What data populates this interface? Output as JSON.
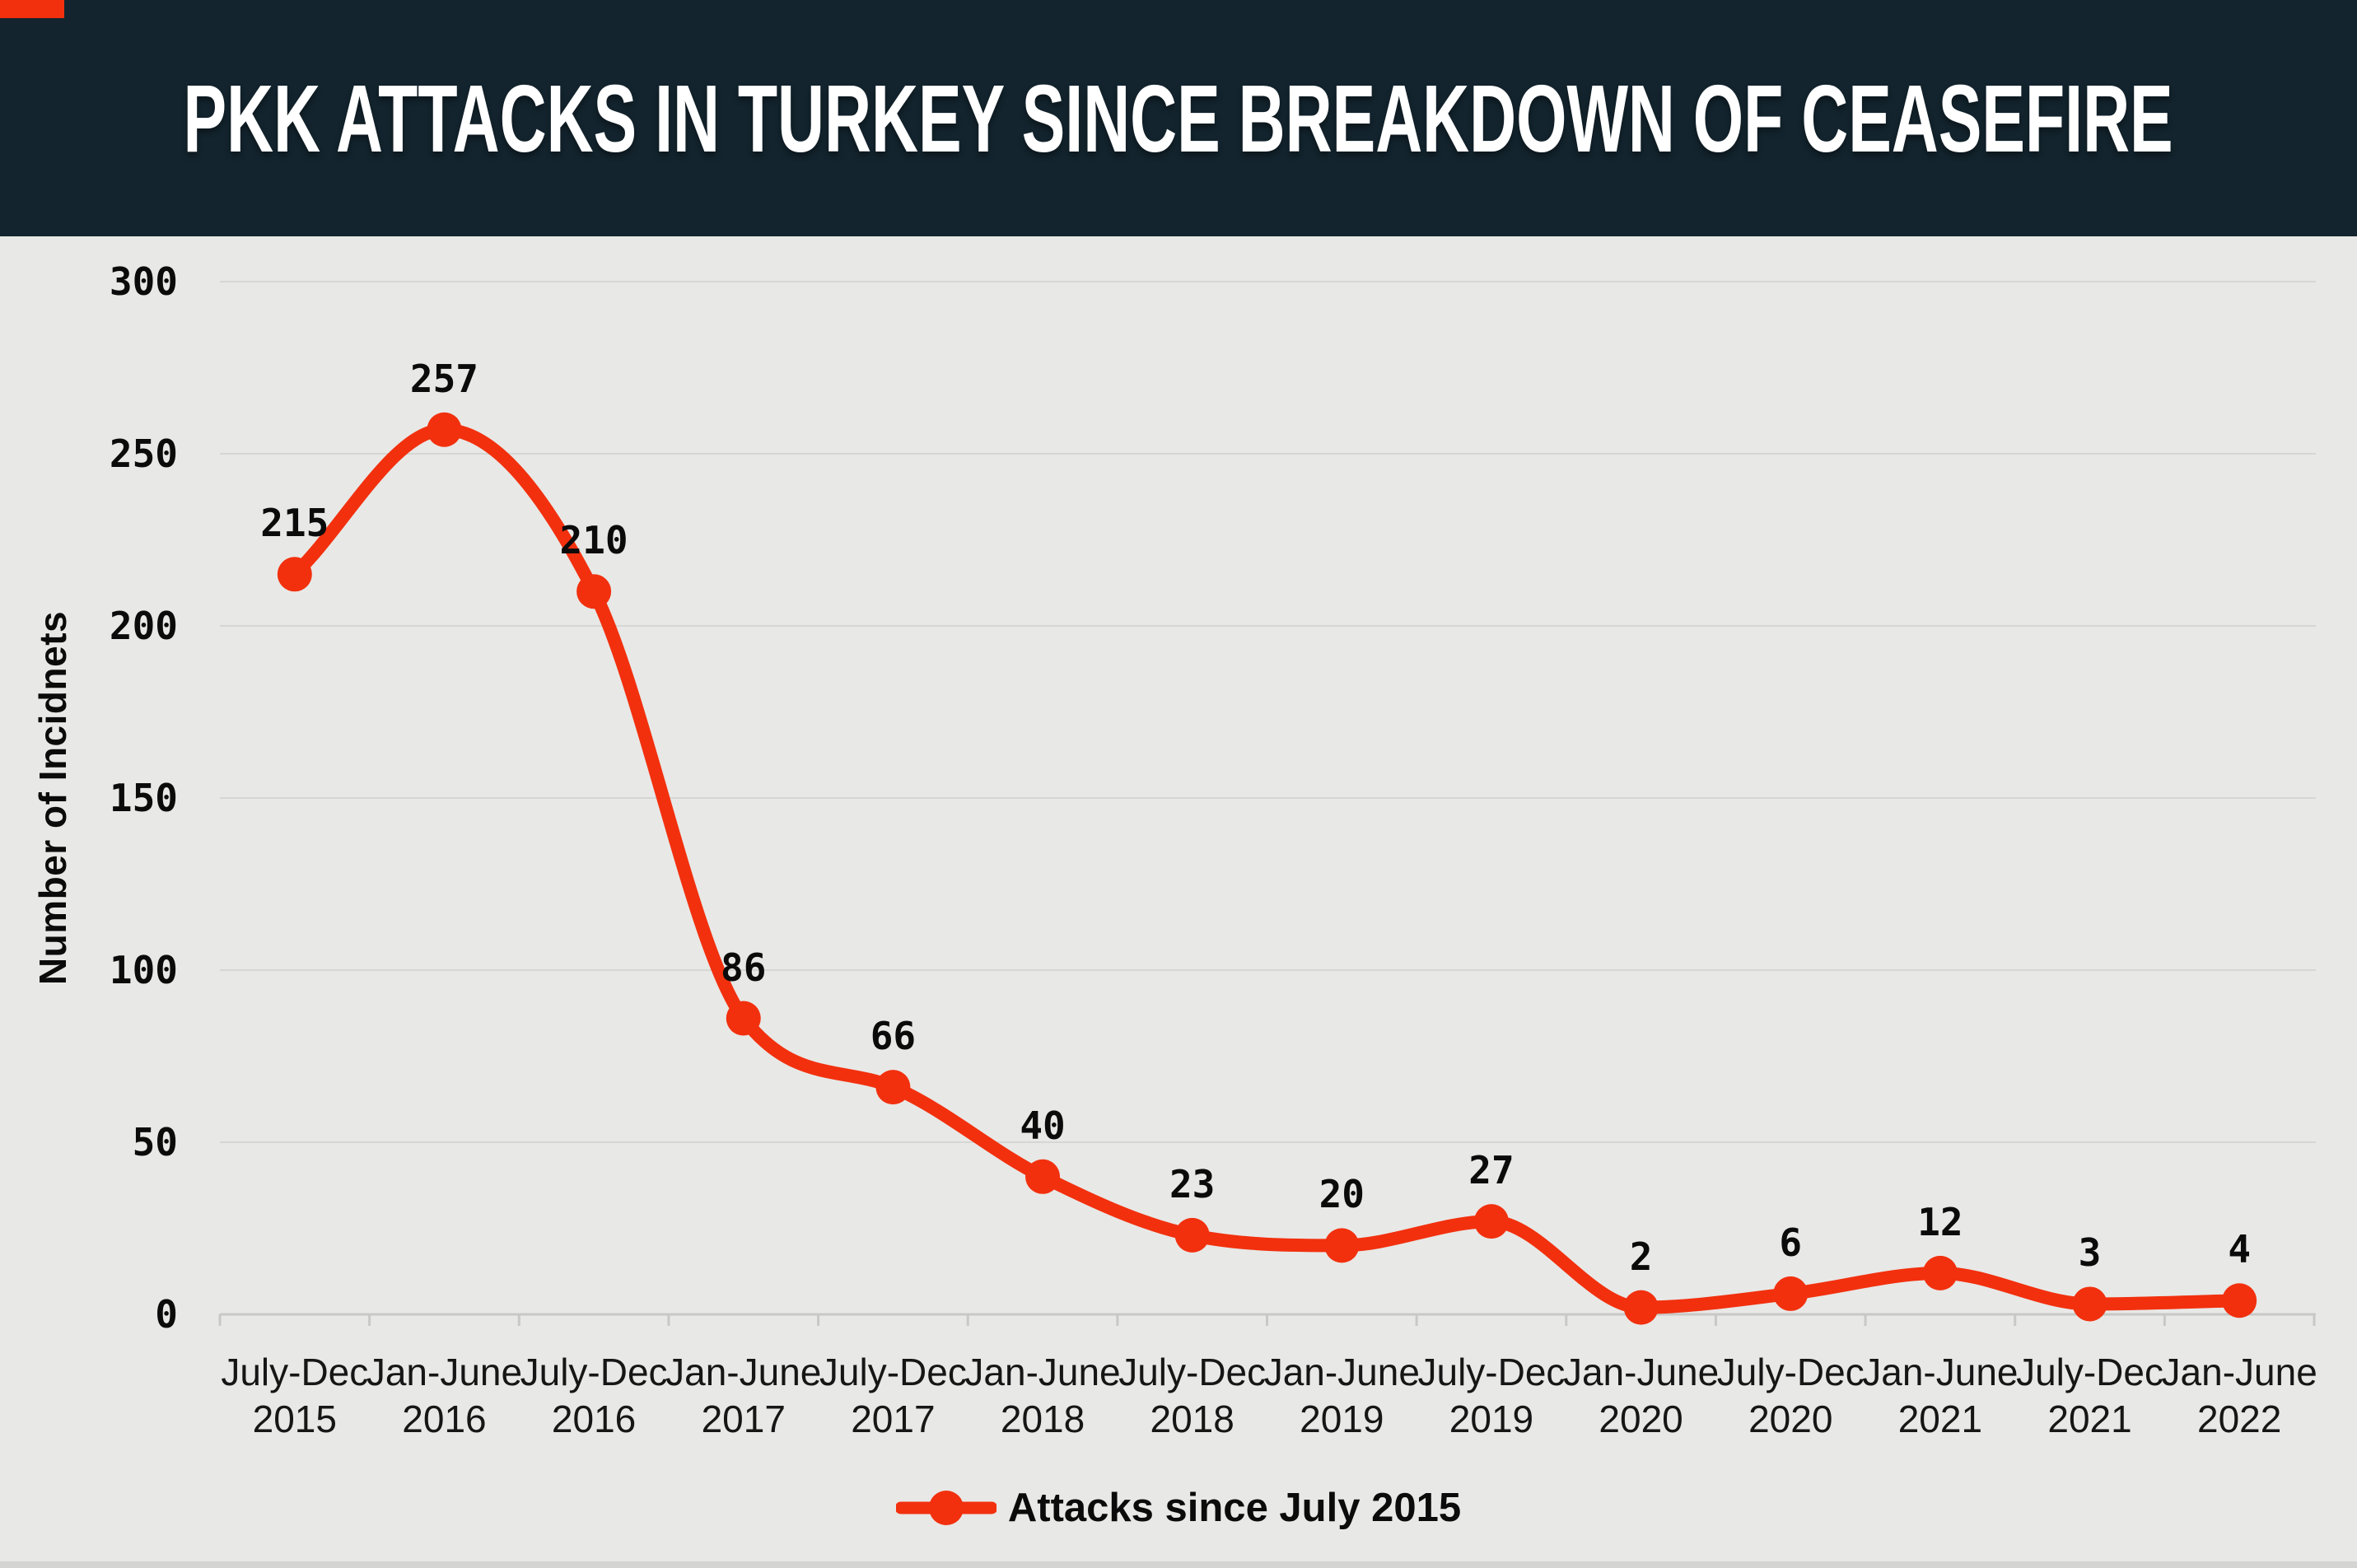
{
  "header": {
    "title": "PKK ATTACKS IN TURKEY SINCE BREAKDOWN OF CEASEFIRE",
    "background_color": "#13242e",
    "accent_color": "#f2300e"
  },
  "chart_data": {
    "type": "line",
    "title": "PKK ATTACKS IN TURKEY SINCE BREAKDOWN OF CEASEFIRE",
    "ylabel": "Number of Incidnets",
    "xlabel": "",
    "legend": "Attacks since July 2015",
    "legend_position": "bottom-center",
    "grid": true,
    "ylim": [
      0,
      300
    ],
    "yticks": [
      0,
      50,
      100,
      150,
      200,
      250,
      300
    ],
    "categories": [
      {
        "period": "July-Dec",
        "year": "2015"
      },
      {
        "period": "Jan-June",
        "year": "2016"
      },
      {
        "period": "July-Dec",
        "year": "2016"
      },
      {
        "period": "Jan-June",
        "year": "2017"
      },
      {
        "period": "July-Dec",
        "year": "2017"
      },
      {
        "period": "Jan-June",
        "year": "2018"
      },
      {
        "period": "July-Dec",
        "year": "2018"
      },
      {
        "period": "Jan-June",
        "year": "2019"
      },
      {
        "period": "July-Dec",
        "year": "2019"
      },
      {
        "period": "Jan-June",
        "year": "2020"
      },
      {
        "period": "July-Dec",
        "year": "2020"
      },
      {
        "period": "Jan-June",
        "year": "2021"
      },
      {
        "period": "July-Dec",
        "year": "2021"
      },
      {
        "period": "Jan-June",
        "year": "2022"
      }
    ],
    "values": [
      215,
      257,
      210,
      86,
      66,
      40,
      23,
      20,
      27,
      2,
      6,
      12,
      3,
      4
    ],
    "line_color": "#f2300e",
    "marker": "circle",
    "grid_color": "#d6d6d4",
    "axis_color": "#c8c8c6",
    "label_color": "#0b0b0b",
    "background_color": "#e8e8e6"
  }
}
